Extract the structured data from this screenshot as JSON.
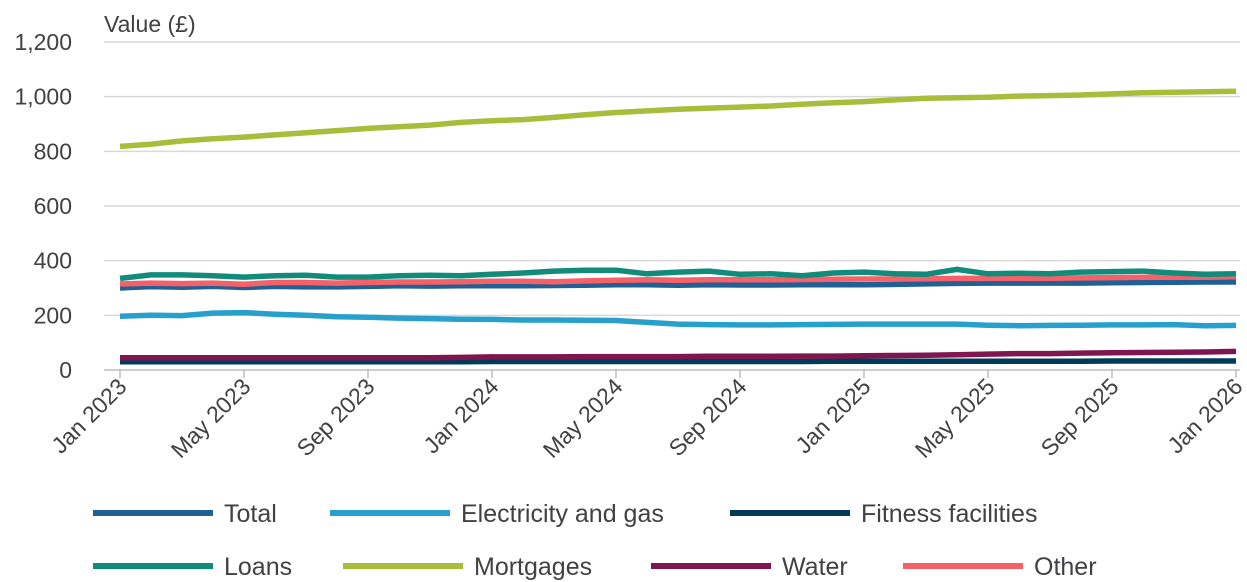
{
  "chart_data": {
    "type": "line",
    "ylabel": "Value (£)",
    "ylim": [
      0,
      1200
    ],
    "yticks": [
      0,
      200,
      400,
      600,
      800,
      1000,
      1200
    ],
    "ytick_labels": [
      "0",
      "200",
      "400",
      "600",
      "800",
      "1,000",
      "1,200"
    ],
    "grid": "horizontal",
    "legend_position": "bottom",
    "x": [
      "2023-01",
      "2023-02",
      "2023-03",
      "2023-04",
      "2023-05",
      "2023-06",
      "2023-07",
      "2023-08",
      "2023-09",
      "2023-10",
      "2023-11",
      "2023-12",
      "2024-01",
      "2024-02",
      "2024-03",
      "2024-04",
      "2024-05",
      "2024-06",
      "2024-07",
      "2024-08",
      "2024-09",
      "2024-10",
      "2024-11",
      "2024-12",
      "2025-01",
      "2025-02",
      "2025-03",
      "2025-04",
      "2025-05",
      "2025-06",
      "2025-07",
      "2025-08",
      "2025-09",
      "2025-10",
      "2025-11",
      "2025-12",
      "2026-01"
    ],
    "xtick_labels": [
      {
        "index": 0,
        "label": "Jan 2023"
      },
      {
        "index": 4,
        "label": "May 2023"
      },
      {
        "index": 8,
        "label": "Sep 2023"
      },
      {
        "index": 12,
        "label": "Jan 2024"
      },
      {
        "index": 16,
        "label": "May 2024"
      },
      {
        "index": 20,
        "label": "Sep 2024"
      },
      {
        "index": 24,
        "label": "Jan 2025"
      },
      {
        "index": 28,
        "label": "May 2025"
      },
      {
        "index": 32,
        "label": "Sep 2025"
      },
      {
        "index": 36,
        "label": "Jan 2026"
      }
    ],
    "series": [
      {
        "name": "Fitness facilities",
        "color": "#003c57",
        "values": [
          30,
          30,
          30,
          30,
          30,
          30,
          30,
          30,
          30,
          30,
          30,
          30,
          31,
          31,
          31,
          31,
          31,
          31,
          31,
          31,
          31,
          31,
          31,
          32,
          32,
          32,
          32,
          32,
          32,
          32,
          32,
          32,
          33,
          33,
          33,
          33,
          33
        ]
      },
      {
        "name": "Water",
        "color": "#801650",
        "values": [
          45,
          45,
          45,
          45,
          45,
          45,
          45,
          45,
          45,
          45,
          45,
          46,
          48,
          48,
          48,
          49,
          49,
          49,
          49,
          50,
          50,
          50,
          51,
          51,
          52,
          53,
          54,
          56,
          58,
          60,
          60,
          62,
          63,
          64,
          65,
          66,
          68
        ]
      },
      {
        "name": "Electricity and gas",
        "color": "#27a0cc",
        "values": [
          197,
          200,
          199,
          208,
          210,
          204,
          200,
          195,
          193,
          190,
          188,
          186,
          185,
          183,
          183,
          182,
          181,
          174,
          168,
          166,
          165,
          165,
          166,
          167,
          168,
          168,
          168,
          168,
          164,
          162,
          163,
          164,
          165,
          165,
          166,
          162,
          163
        ]
      },
      {
        "name": "Total",
        "color": "#206095",
        "values": [
          300,
          305,
          303,
          306,
          302,
          306,
          304,
          304,
          306,
          308,
          307,
          308,
          308,
          308,
          309,
          310,
          312,
          312,
          310,
          312,
          311,
          311,
          312,
          312,
          312,
          313,
          315,
          317,
          318,
          318,
          318,
          318,
          319,
          320,
          321,
          322,
          322
        ]
      },
      {
        "name": "Other",
        "color": "#f66068",
        "values": [
          315,
          318,
          316,
          318,
          314,
          320,
          320,
          318,
          320,
          322,
          322,
          323,
          325,
          325,
          323,
          326,
          328,
          330,
          328,
          330,
          330,
          330,
          331,
          332,
          333,
          333,
          334,
          335,
          335,
          336,
          336,
          337,
          338,
          339,
          339,
          339,
          341
        ]
      },
      {
        "name": "Loans",
        "color": "#118c7b",
        "values": [
          335,
          348,
          348,
          345,
          340,
          345,
          347,
          340,
          340,
          345,
          347,
          345,
          350,
          355,
          362,
          365,
          365,
          352,
          358,
          362,
          350,
          352,
          345,
          355,
          358,
          352,
          350,
          368,
          352,
          354,
          352,
          358,
          360,
          362,
          355,
          350,
          352
        ]
      },
      {
        "name": "Mortgages",
        "color": "#a8bd3a",
        "values": [
          818,
          826,
          838,
          846,
          852,
          860,
          868,
          876,
          884,
          890,
          896,
          906,
          912,
          916,
          924,
          934,
          942,
          948,
          954,
          958,
          962,
          966,
          972,
          978,
          982,
          988,
          994,
          996,
          998,
          1002,
          1004,
          1006,
          1010,
          1014,
          1016,
          1018,
          1020
        ]
      }
    ],
    "legend": [
      {
        "name": "Total",
        "color": "#206095"
      },
      {
        "name": "Electricity and gas",
        "color": "#27a0cc"
      },
      {
        "name": "Fitness facilities",
        "color": "#003c57"
      },
      {
        "name": "Loans",
        "color": "#118c7b"
      },
      {
        "name": "Mortgages",
        "color": "#a8bd3a"
      },
      {
        "name": "Water",
        "color": "#801650"
      },
      {
        "name": "Other",
        "color": "#f66068"
      }
    ]
  }
}
